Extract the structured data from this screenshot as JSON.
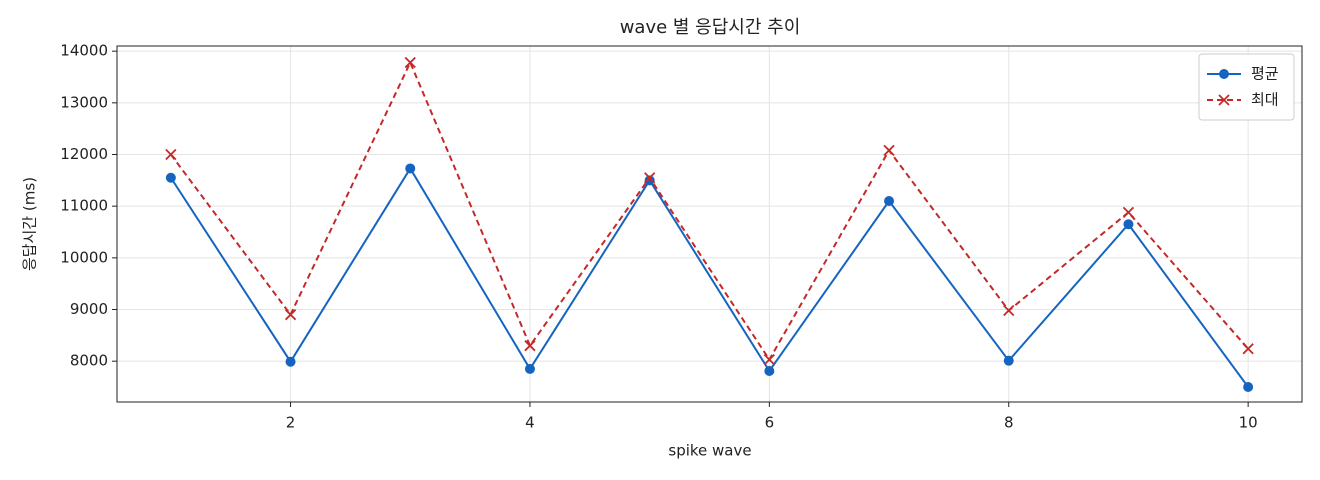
{
  "chart_data": {
    "type": "line",
    "title": "wave 별 응답시간 추이",
    "x_label": "spike wave",
    "y_label": "응답시간 (ms)",
    "x": [
      1,
      2,
      3,
      4,
      5,
      6,
      7,
      8,
      9,
      10
    ],
    "series": [
      {
        "name": "평균",
        "color": "#1565c0",
        "marker": "o",
        "linestyle": "solid",
        "values": [
          11550,
          7990,
          11730,
          7850,
          11500,
          7810,
          11100,
          8010,
          10650,
          7500
        ]
      },
      {
        "name": "최대",
        "color": "#c62828",
        "marker": "x",
        "linestyle": "dashed",
        "values": [
          12000,
          8900,
          13780,
          8300,
          11550,
          8030,
          12080,
          8980,
          10880,
          8240
        ]
      }
    ],
    "xlim": [
      0.55,
      10.45
    ],
    "xticks": [
      2,
      4,
      6,
      8,
      10
    ],
    "ylim": [
      7210,
      14100
    ],
    "yticks": [
      8000,
      9000,
      10000,
      11000,
      12000,
      13000,
      14000
    ],
    "grid": true,
    "legend": "upper right"
  }
}
